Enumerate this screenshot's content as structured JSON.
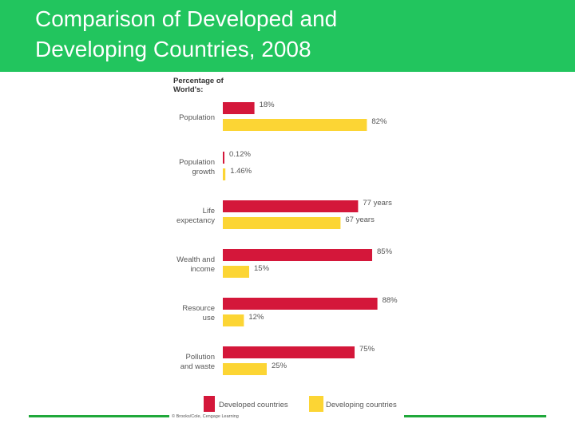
{
  "slide": {
    "title_line_1": "Comparison of Developed and",
    "title_line_2": "Developing Countries, 2008",
    "colors": {
      "banner": "#22c55e",
      "rule": "#1fa83a"
    }
  },
  "chart_data": {
    "type": "bar",
    "orientation": "horizontal",
    "title": "Percentage of World's:",
    "categories": [
      [
        "Population"
      ],
      [
        "Population",
        "growth"
      ],
      [
        "Life",
        "expectancy"
      ],
      [
        "Wealth and",
        "income"
      ],
      [
        "Resource",
        "use"
      ],
      [
        "Pollution",
        "and waste"
      ]
    ],
    "series": [
      {
        "name": "Developed countries",
        "color": "#d4173a",
        "values": [
          18,
          0.12,
          77,
          85,
          88,
          75
        ],
        "labels": [
          "18%",
          "0.12%",
          "77 years",
          "85%",
          "88%",
          "75%"
        ]
      },
      {
        "name": "Developing countries",
        "color": "#fcd534",
        "values": [
          82,
          1.46,
          67,
          15,
          12,
          25
        ],
        "labels": [
          "82%",
          "1.46%",
          "67 years",
          "15%",
          "12%",
          "25%"
        ]
      }
    ],
    "legend": "bottom",
    "credit": "© Brooks/Cole, Cengage Learning"
  }
}
